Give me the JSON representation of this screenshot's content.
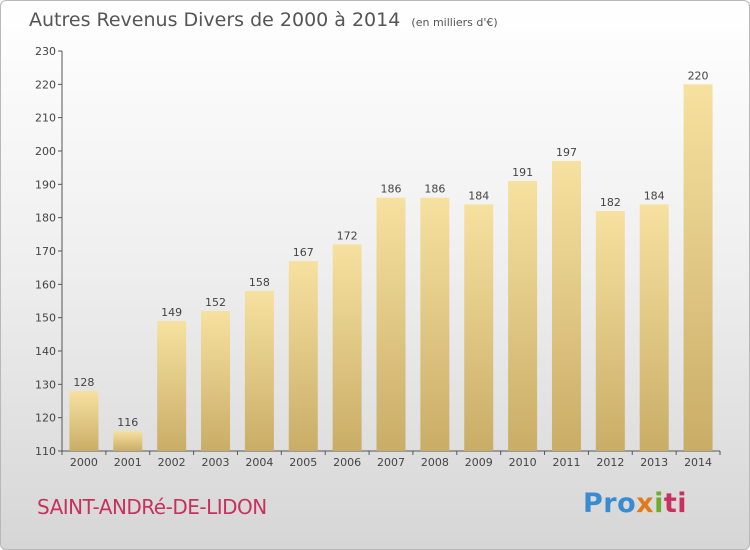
{
  "header": {
    "title": "Autres Revenus Divers de 2000 à 2014",
    "unit_note": "(en milliers d'€)"
  },
  "footer": {
    "town": "SAINT-ANDRé-DE-LIDON",
    "logo": [
      "Pro",
      "x",
      "i",
      "ti"
    ]
  },
  "colors": {
    "bar_light": "#f7e1a0",
    "bar_dark": "#c9ad67",
    "axis": "#555555",
    "title": "#555555",
    "town": "#c8315f"
  },
  "chart_data": {
    "type": "bar",
    "title": "Autres Revenus Divers de 2000 à 2014",
    "subtitle": "(en milliers d'€)",
    "categories": [
      "2000",
      "2001",
      "2002",
      "2003",
      "2004",
      "2005",
      "2006",
      "2007",
      "2008",
      "2009",
      "2010",
      "2011",
      "2012",
      "2013",
      "2014"
    ],
    "values": [
      128,
      116,
      149,
      152,
      158,
      167,
      172,
      186,
      186,
      184,
      191,
      197,
      182,
      184,
      220
    ],
    "ylim": [
      110,
      230
    ],
    "yticks": [
      110,
      120,
      130,
      140,
      150,
      160,
      170,
      180,
      190,
      200,
      210,
      220,
      230
    ],
    "xlabel": "",
    "ylabel": "",
    "grid": false,
    "data_labels": true
  }
}
